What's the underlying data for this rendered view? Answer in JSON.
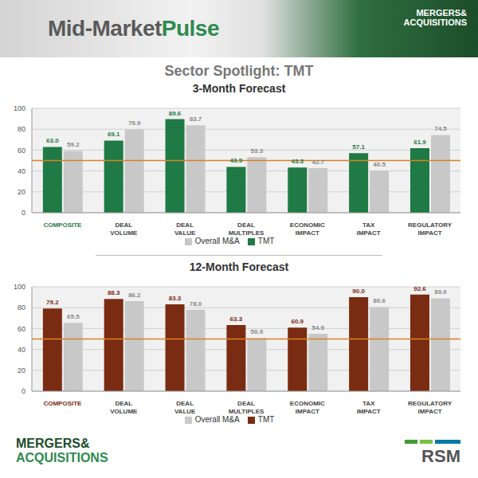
{
  "header": {
    "title": [
      "Mid-Market",
      "Pulse"
    ],
    "logo": [
      "MERGERS&",
      "ACQUISITIONS"
    ]
  },
  "subtitle": "Sector Spotlight: TMT",
  "footer": {
    "left_logo": [
      "MERGERS&",
      "ACQUISITIONS"
    ],
    "right_logo": "RSM"
  },
  "chart_data": [
    {
      "type": "bar",
      "title": "3-Month Forecast",
      "categories": [
        "COMPOSITE",
        "DEAL VOLUME",
        "DEAL VALUE",
        "DEAL MULTIPLES",
        "ECONOMIC IMPACT",
        "TAX IMPACT",
        "REGULATORY IMPACT"
      ],
      "series": [
        {
          "name": "TMT",
          "color": "#1f7a45",
          "values": [
            63.0,
            69.1,
            89.6,
            43.9,
            43.3,
            57.1,
            61.9
          ],
          "value_labels": [
            "63.0",
            "69.1",
            "89.6",
            "43.9",
            "43.3",
            "57.1",
            "61.9"
          ]
        },
        {
          "name": "Overall M&A",
          "color": "#c8c8c8",
          "values": [
            59.2,
            79.9,
            83.7,
            53.3,
            42.7,
            40.5,
            74.5
          ],
          "value_labels": [
            "59.2",
            "79.9",
            "83.7",
            "53.3",
            "42.7",
            "40.5",
            "74.5"
          ]
        }
      ],
      "ylim": [
        0,
        100
      ],
      "yticks": [
        0,
        20,
        40,
        60,
        80,
        100
      ],
      "grid": true,
      "legend": "bottom",
      "data_labels": true,
      "reference_line": 50
    },
    {
      "type": "bar",
      "title": "12-Month Forecast",
      "categories": [
        "COMPOSITE",
        "DEAL VOLUME",
        "DEAL VALUE",
        "DEAL MULTIPLES",
        "ECONOMIC IMPACT",
        "TAX IMPACT",
        "REGULATORY IMPACT"
      ],
      "series": [
        {
          "name": "TMT",
          "color": "#7a2c12",
          "values": [
            79.2,
            88.3,
            83.3,
            63.3,
            60.9,
            90.0,
            92.6
          ],
          "value_labels": [
            "79.2",
            "88.3",
            "83.3",
            "63.3",
            "60.9",
            "90.0",
            "92.6"
          ]
        },
        {
          "name": "Overall M&A",
          "color": "#c8c8c8",
          "values": [
            65.5,
            86.2,
            78.0,
            50.9,
            54.9,
            80.6,
            89.0
          ],
          "value_labels": [
            "65.5",
            "86.2",
            "78.0",
            "50.9",
            "54.9",
            "80.6",
            "89.0"
          ]
        }
      ],
      "ylim": [
        0,
        100
      ],
      "yticks": [
        0,
        20,
        40,
        60,
        80,
        100
      ],
      "grid": true,
      "legend": "bottom",
      "data_labels": true,
      "reference_line": 50
    }
  ]
}
